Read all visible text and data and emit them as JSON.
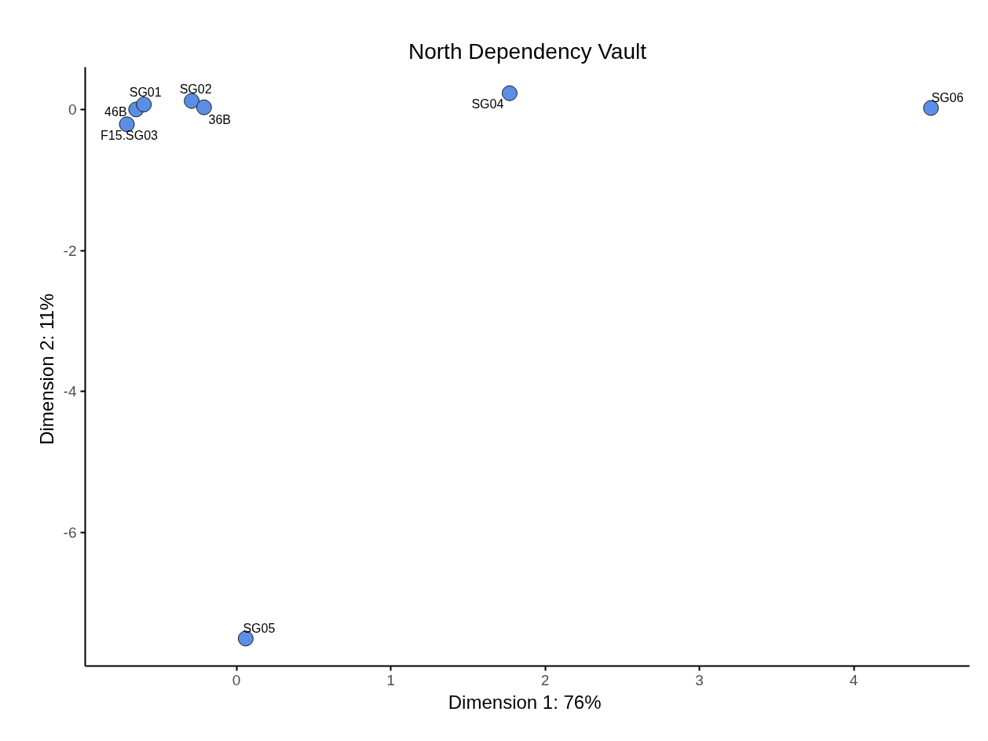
{
  "chart_data": {
    "type": "scatter",
    "title": "North Dependency Vault",
    "xlabel": "Dimension 1:  76%",
    "ylabel": "Dimension 2:  11%",
    "xlim": [
      -0.98,
      4.75
    ],
    "ylim": [
      -7.89,
      0.6
    ],
    "xticks": [
      0,
      1,
      2,
      3,
      4
    ],
    "yticks": [
      -6,
      -4,
      -2,
      0
    ],
    "grid": false,
    "legend": false,
    "marker": "circle",
    "series": [
      {
        "name": "46B",
        "color": "#5b8ee6",
        "x": [
          -0.65
        ],
        "values": [
          0.0
        ]
      },
      {
        "name": "SG01",
        "color": "#5b8ee6",
        "x": [
          -0.6
        ],
        "values": [
          0.07
        ]
      },
      {
        "name": "F15.SG03",
        "color": "#5b8ee6",
        "x": [
          -0.71
        ],
        "values": [
          -0.21
        ]
      },
      {
        "name": "SG02",
        "color": "#5b8ee6",
        "x": [
          -0.29
        ],
        "values": [
          0.12
        ]
      },
      {
        "name": "36B",
        "color": "#5b8ee6",
        "x": [
          -0.21
        ],
        "values": [
          0.03
        ]
      },
      {
        "name": "SG04",
        "color": "#5b8ee6",
        "x": [
          1.77
        ],
        "values": [
          0.23
        ]
      },
      {
        "name": "SG05",
        "color": "#5b8ee6",
        "x": [
          0.06
        ],
        "values": [
          -7.5
        ]
      },
      {
        "name": "SG06",
        "color": "#5b8ee6",
        "x": [
          4.5
        ],
        "values": [
          0.02
        ]
      }
    ]
  }
}
